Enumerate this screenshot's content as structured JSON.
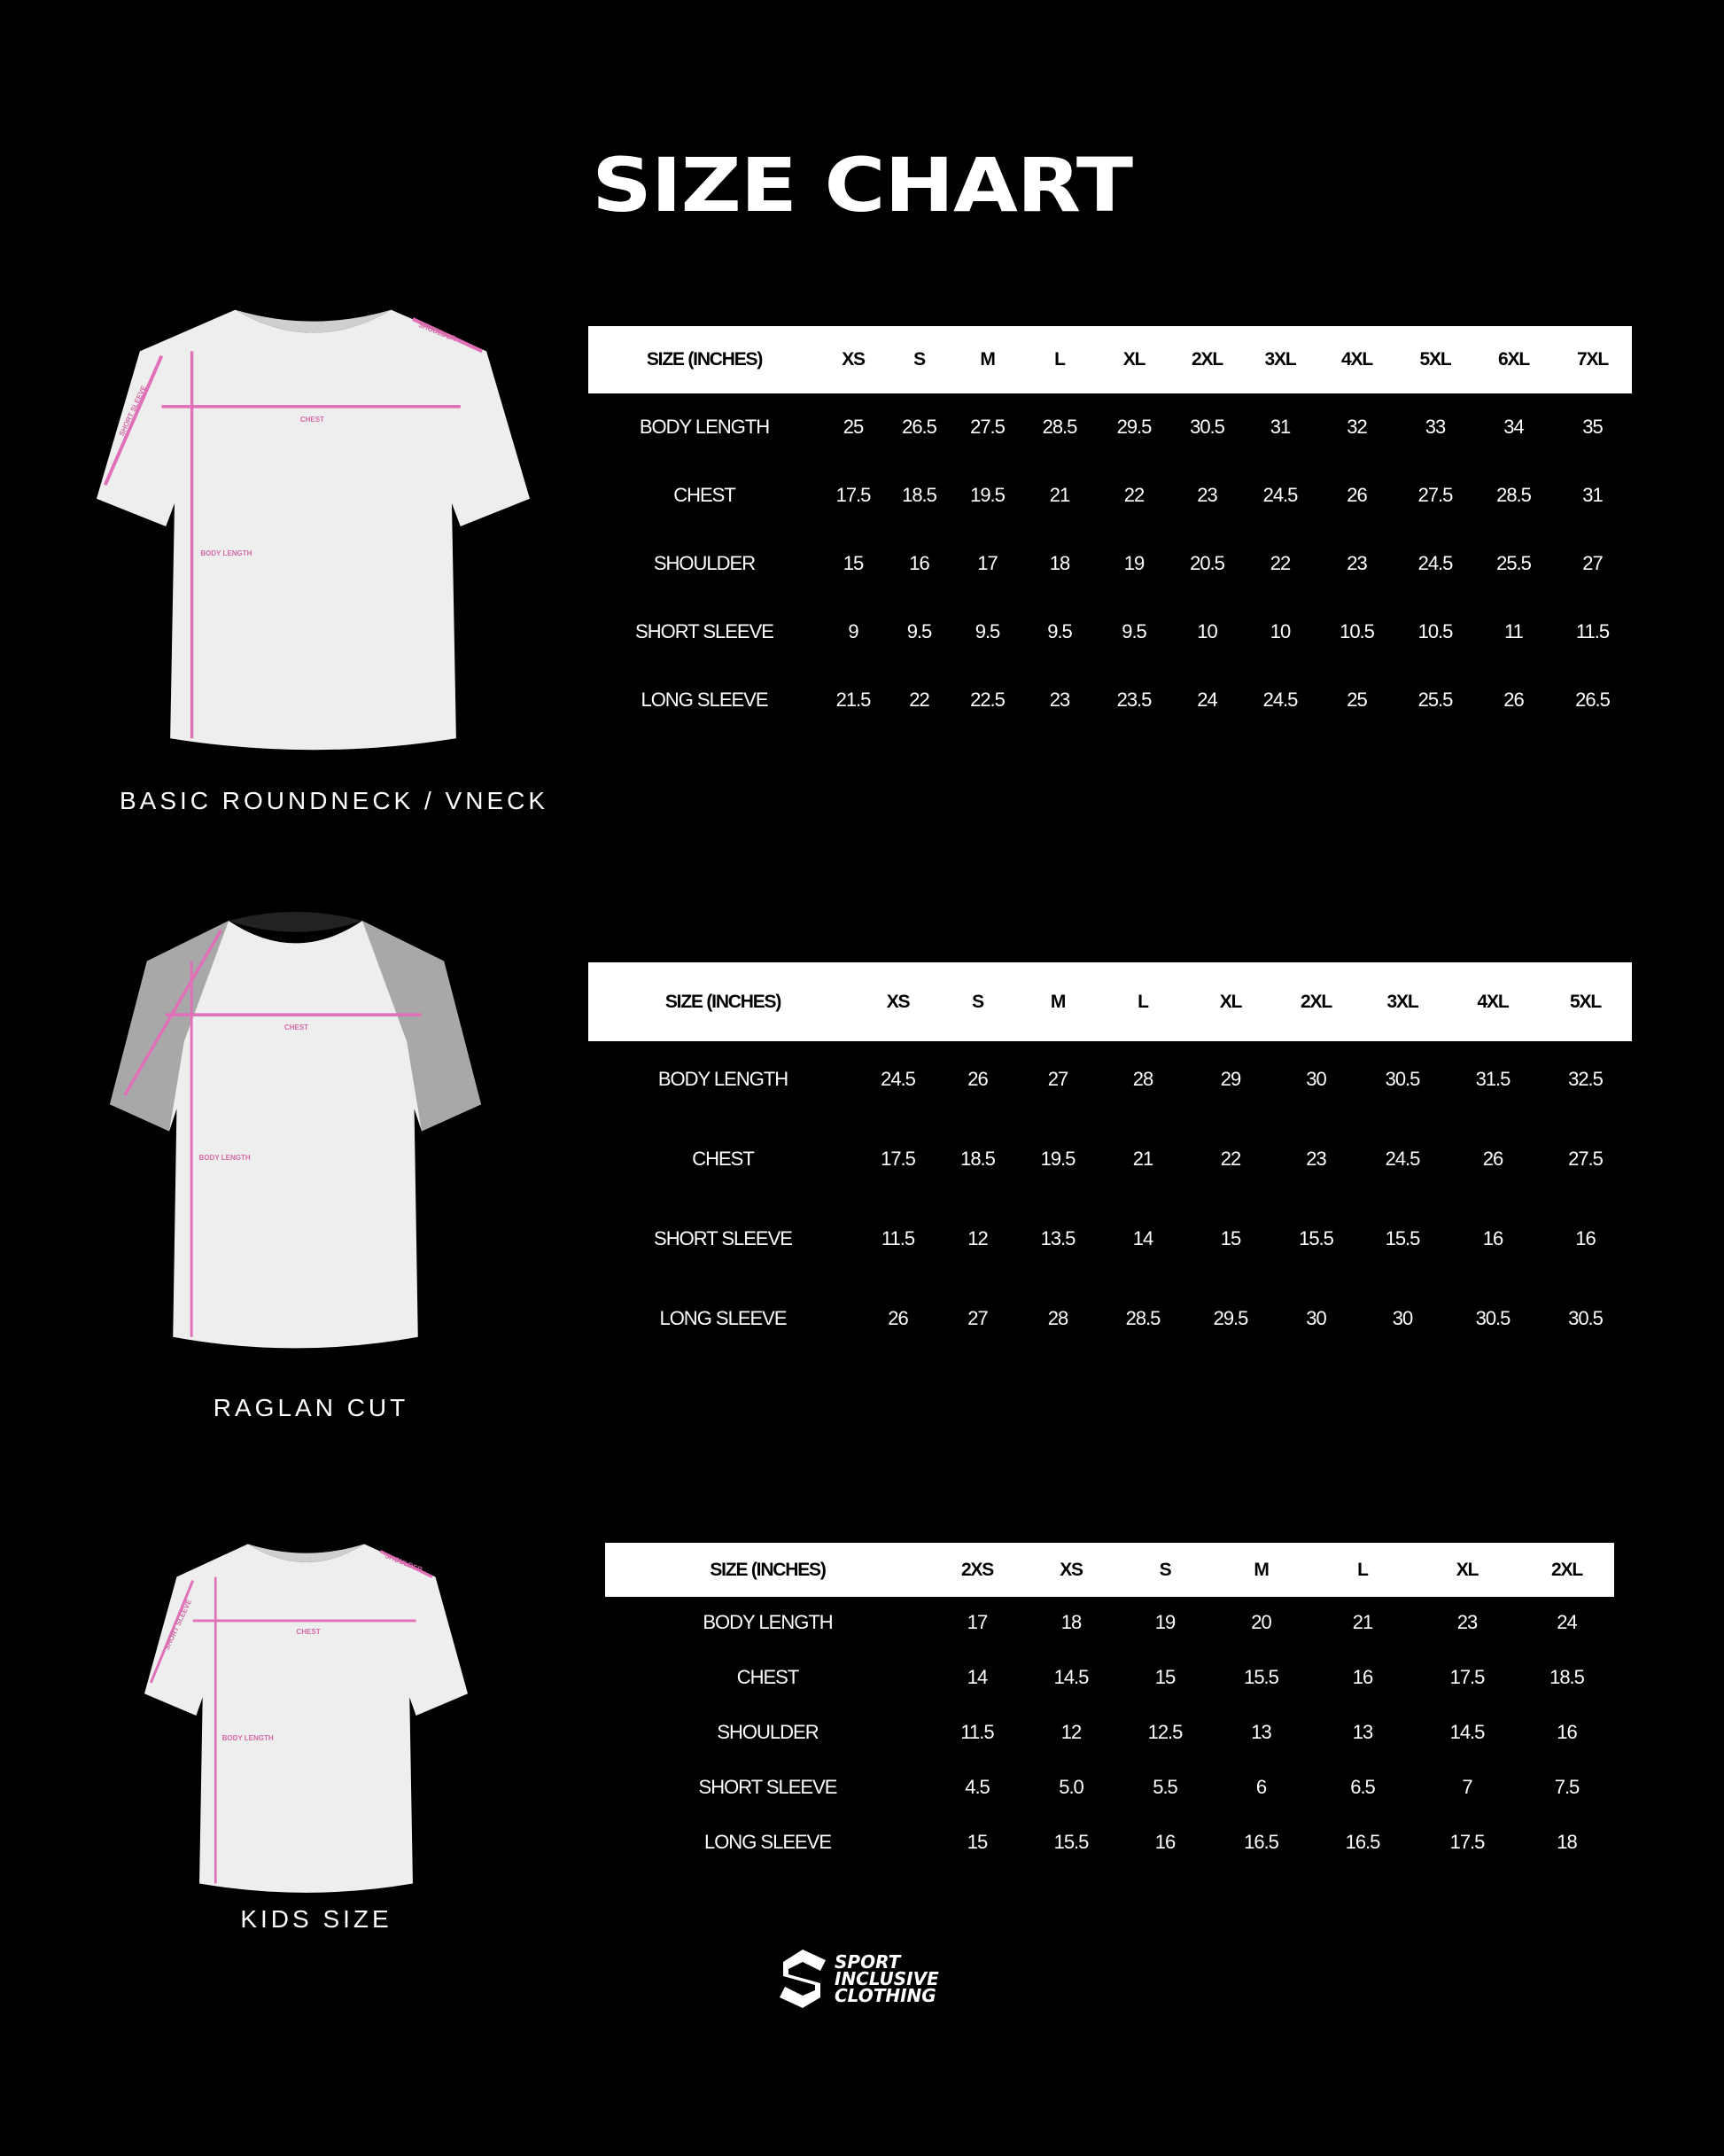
{
  "title": "SIZE CHART",
  "colors": {
    "background": "#000000",
    "header_bg": "#ffffff",
    "measure_line": "#e070b8",
    "raglan_sleeve": "#a8a8a8"
  },
  "sections": [
    {
      "caption": "BASIC ROUNDNECK / VNECK",
      "shirt_labels": {
        "shoulder": "SHOULDER",
        "chest": "CHEST",
        "body": "BODY LENGTH",
        "sleeve": "SHORT SLEEVE"
      },
      "headers": [
        "SIZE (INCHES)",
        "XS",
        "S",
        "M",
        "L",
        "XL",
        "2XL",
        "3XL",
        "4XL",
        "5XL",
        "6XL",
        "7XL"
      ],
      "rows": [
        [
          "BODY LENGTH",
          "25",
          "26.5",
          "27.5",
          "28.5",
          "29.5",
          "30.5",
          "31",
          "32",
          "33",
          "34",
          "35"
        ],
        [
          "CHEST",
          "17.5",
          "18.5",
          "19.5",
          "21",
          "22",
          "23",
          "24.5",
          "26",
          "27.5",
          "28.5",
          "31"
        ],
        [
          "SHOULDER",
          "15",
          "16",
          "17",
          "18",
          "19",
          "20.5",
          "22",
          "23",
          "24.5",
          "25.5",
          "27"
        ],
        [
          "SHORT SLEEVE",
          "9",
          "9.5",
          "9.5",
          "9.5",
          "9.5",
          "10",
          "10",
          "10.5",
          "10.5",
          "11",
          "11.5"
        ],
        [
          "LONG SLEEVE",
          "21.5",
          "22",
          "22.5",
          "23",
          "23.5",
          "24",
          "24.5",
          "25",
          "25.5",
          "26",
          "26.5"
        ]
      ]
    },
    {
      "caption": "RAGLAN CUT",
      "shirt_labels": {
        "chest": "CHEST",
        "body": "BODY LENGTH"
      },
      "headers": [
        "SIZE (INCHES)",
        "XS",
        "S",
        "M",
        "L",
        "XL",
        "2XL",
        "3XL",
        "4XL",
        "5XL"
      ],
      "rows": [
        [
          "BODY LENGTH",
          "24.5",
          "26",
          "27",
          "28",
          "29",
          "30",
          "30.5",
          "31.5",
          "32.5"
        ],
        [
          "CHEST",
          "17.5",
          "18.5",
          "19.5",
          "21",
          "22",
          "23",
          "24.5",
          "26",
          "27.5"
        ],
        [
          "SHORT SLEEVE",
          "11.5",
          "12",
          "13.5",
          "14",
          "15",
          "15.5",
          "15.5",
          "16",
          "16"
        ],
        [
          "LONG SLEEVE",
          "26",
          "27",
          "28",
          "28.5",
          "29.5",
          "30",
          "30",
          "30.5",
          "30.5"
        ]
      ]
    },
    {
      "caption": "KIDS SIZE",
      "shirt_labels": {
        "shoulder": "SHOULDER",
        "chest": "CHEST",
        "body": "BODY LENGTH",
        "sleeve": "SHORT SLEEVE"
      },
      "headers": [
        "SIZE (INCHES)",
        "2XS",
        "XS",
        "S",
        "M",
        "L",
        "XL",
        "2XL"
      ],
      "rows": [
        [
          "BODY LENGTH",
          "17",
          "18",
          "19",
          "20",
          "21",
          "23",
          "24"
        ],
        [
          "CHEST",
          "14",
          "14.5",
          "15",
          "15.5",
          "16",
          "17.5",
          "18.5"
        ],
        [
          "SHOULDER",
          "11.5",
          "12",
          "12.5",
          "13",
          "13",
          "14.5",
          "16"
        ],
        [
          "SHORT SLEEVE",
          "4.5",
          "5.0",
          "5.5",
          "6",
          "6.5",
          "7",
          "7.5"
        ],
        [
          "LONG SLEEVE",
          "15",
          "15.5",
          "16",
          "16.5",
          "16.5",
          "17.5",
          "18"
        ]
      ]
    }
  ],
  "logo": {
    "icon": "s-hexagon-logo",
    "lines": [
      "SPORT",
      "INCLUSIVE",
      "CLOTHING"
    ]
  }
}
